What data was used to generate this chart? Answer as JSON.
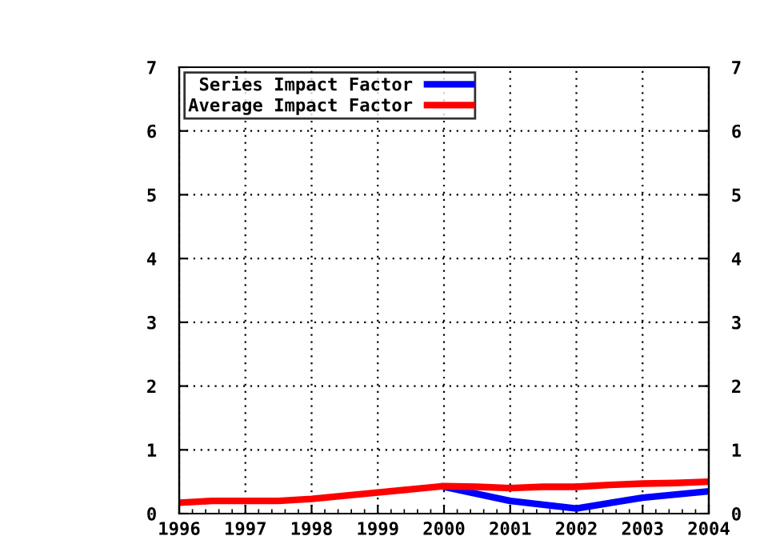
{
  "chart_data": {
    "type": "line",
    "x": [
      1996,
      1996.5,
      1997,
      1997.5,
      1998,
      1998.5,
      1999,
      1999.5,
      2000,
      2000.5,
      2001,
      2001.5,
      2002,
      2002.5,
      2003,
      2003.5,
      2004
    ],
    "series": [
      {
        "name": "Series Impact Factor",
        "color": "#0000ff",
        "x": [
          2000,
          2001,
          2002,
          2003,
          2004
        ],
        "values": [
          0.42,
          0.2,
          0.08,
          0.25,
          0.35
        ]
      },
      {
        "name": "Average Impact Factor",
        "color": "#ff0000",
        "values": [
          0.17,
          0.2,
          0.2,
          0.2,
          0.23,
          0.28,
          0.33,
          0.38,
          0.43,
          0.42,
          0.4,
          0.42,
          0.42,
          0.45,
          0.47,
          0.48,
          0.5
        ]
      }
    ],
    "xlim": [
      1996,
      2004
    ],
    "xticks": [
      1996,
      1997,
      1998,
      1999,
      2000,
      2001,
      2002,
      2003,
      2004
    ],
    "ylim": [
      0,
      7
    ],
    "yticks": [
      0,
      1,
      2,
      3,
      4,
      5,
      6,
      7
    ],
    "y2lim": [
      0,
      7
    ],
    "y2ticks": [
      0,
      1,
      2,
      3,
      4,
      5,
      6,
      7
    ],
    "grid": true,
    "legend": "top left",
    "line_style": "solid"
  }
}
